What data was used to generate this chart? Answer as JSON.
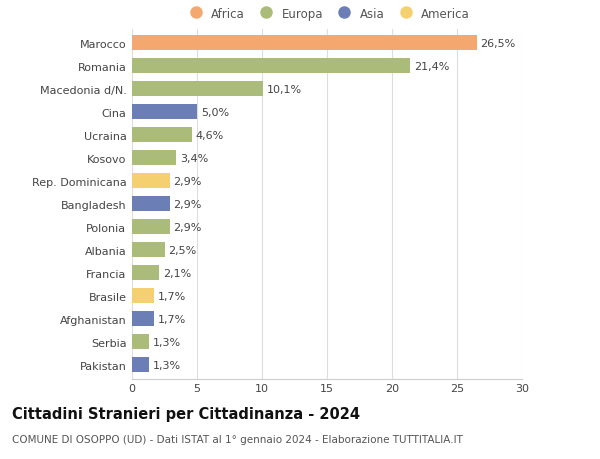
{
  "countries": [
    "Marocco",
    "Romania",
    "Macedonia d/N.",
    "Cina",
    "Ucraina",
    "Kosovo",
    "Rep. Dominicana",
    "Bangladesh",
    "Polonia",
    "Albania",
    "Francia",
    "Brasile",
    "Afghanistan",
    "Serbia",
    "Pakistan"
  ],
  "values": [
    26.5,
    21.4,
    10.1,
    5.0,
    4.6,
    3.4,
    2.9,
    2.9,
    2.9,
    2.5,
    2.1,
    1.7,
    1.7,
    1.3,
    1.3
  ],
  "labels": [
    "26,5%",
    "21,4%",
    "10,1%",
    "5,0%",
    "4,6%",
    "3,4%",
    "2,9%",
    "2,9%",
    "2,9%",
    "2,5%",
    "2,1%",
    "1,7%",
    "1,7%",
    "1,3%",
    "1,3%"
  ],
  "continents": [
    "Africa",
    "Europa",
    "Europa",
    "Asia",
    "Europa",
    "Europa",
    "America",
    "Asia",
    "Europa",
    "Europa",
    "Europa",
    "America",
    "Asia",
    "Europa",
    "Asia"
  ],
  "continent_colors": {
    "Africa": "#F4A870",
    "Europa": "#AABB7A",
    "Asia": "#6B7EB5",
    "America": "#F5D070"
  },
  "legend_order": [
    "Africa",
    "Europa",
    "Asia",
    "America"
  ],
  "xlim": [
    0,
    30
  ],
  "xticks": [
    0,
    5,
    10,
    15,
    20,
    25,
    30
  ],
  "title": "Cittadini Stranieri per Cittadinanza - 2024",
  "subtitle": "COMUNE DI OSOPPO (UD) - Dati ISTAT al 1° gennaio 2024 - Elaborazione TUTTITALIA.IT",
  "background_color": "#ffffff",
  "grid_color": "#dddddd",
  "bar_height": 0.65,
  "title_fontsize": 10.5,
  "subtitle_fontsize": 7.5,
  "label_fontsize": 8,
  "tick_fontsize": 8,
  "legend_fontsize": 8.5
}
